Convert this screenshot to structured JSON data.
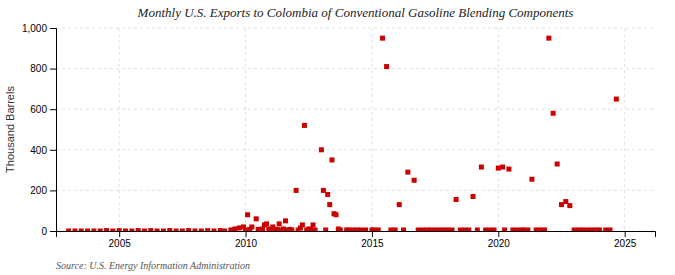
{
  "chart_data": {
    "type": "scatter",
    "title": "Monthly U.S. Exports to Colombia of Conventional Gasoline Blending Components",
    "ylabel": "Thousand Barrels",
    "source": "Source: U.S. Energy Information Administration",
    "color": "#cc0000",
    "marker": "square",
    "grid": true,
    "xlim": [
      2002.5,
      2026.2
    ],
    "xticks": [
      2005,
      2010,
      2015,
      2020,
      2025
    ],
    "ylim": [
      0,
      1000
    ],
    "yticks": [
      0,
      200,
      400,
      600,
      800,
      {
        "value": 1000,
        "label": "1,000"
      }
    ],
    "x": [
      2003.0,
      2003.25,
      2003.5,
      2003.75,
      2004.0,
      2004.25,
      2004.5,
      2004.75,
      2005.0,
      2005.25,
      2005.5,
      2005.75,
      2006.0,
      2006.25,
      2006.5,
      2006.75,
      2007.0,
      2007.25,
      2007.5,
      2007.75,
      2008.0,
      2008.25,
      2008.5,
      2008.75,
      2009.0,
      2009.17,
      2009.42,
      2009.58,
      2009.75,
      2009.92,
      2010.0,
      2010.08,
      2010.17,
      2010.25,
      2010.42,
      2010.5,
      2010.58,
      2010.67,
      2010.75,
      2010.83,
      2010.92,
      2011.0,
      2011.08,
      2011.17,
      2011.25,
      2011.33,
      2011.42,
      2011.5,
      2011.58,
      2011.67,
      2011.75,
      2011.83,
      2012.0,
      2012.08,
      2012.17,
      2012.25,
      2012.33,
      2012.42,
      2012.5,
      2012.58,
      2012.67,
      2012.75,
      2013.0,
      2013.08,
      2013.17,
      2013.25,
      2013.33,
      2013.42,
      2013.5,
      2013.58,
      2013.67,
      2013.75,
      2014.0,
      2014.08,
      2014.25,
      2014.42,
      2014.58,
      2014.75,
      2015.0,
      2015.08,
      2015.25,
      2015.42,
      2015.58,
      2015.75,
      2015.92,
      2016.08,
      2016.25,
      2016.42,
      2016.67,
      2016.83,
      2017.0,
      2017.17,
      2017.33,
      2017.5,
      2017.67,
      2017.83,
      2018.0,
      2018.17,
      2018.33,
      2018.5,
      2018.67,
      2018.83,
      2019.0,
      2019.17,
      2019.33,
      2019.5,
      2019.67,
      2019.83,
      2020.0,
      2020.17,
      2020.25,
      2020.42,
      2020.58,
      2020.75,
      2020.92,
      2021.0,
      2021.17,
      2021.33,
      2021.5,
      2021.67,
      2021.83,
      2022.0,
      2022.17,
      2022.33,
      2022.5,
      2022.67,
      2022.83,
      2023.0,
      2023.17,
      2023.33,
      2023.5,
      2023.67,
      2023.83,
      2024.0,
      2024.25,
      2024.42,
      2024.67
    ],
    "values": [
      0,
      0,
      0,
      0,
      0,
      0,
      2,
      0,
      2,
      0,
      0,
      2,
      0,
      2,
      0,
      0,
      2,
      0,
      0,
      2,
      0,
      0,
      2,
      0,
      2,
      0,
      5,
      10,
      15,
      20,
      5,
      80,
      8,
      20,
      60,
      8,
      5,
      10,
      30,
      35,
      10,
      5,
      20,
      5,
      8,
      35,
      5,
      10,
      50,
      5,
      8,
      5,
      200,
      5,
      15,
      30,
      520,
      5,
      10,
      8,
      30,
      5,
      400,
      200,
      5,
      180,
      130,
      350,
      85,
      80,
      10,
      5,
      5,
      5,
      5,
      5,
      5,
      5,
      5,
      5,
      5,
      950,
      810,
      5,
      5,
      130,
      5,
      290,
      250,
      5,
      5,
      5,
      5,
      5,
      5,
      5,
      5,
      5,
      155,
      5,
      5,
      5,
      170,
      5,
      315,
      5,
      5,
      5,
      310,
      315,
      5,
      305,
      5,
      5,
      5,
      5,
      5,
      255,
      5,
      5,
      5,
      950,
      580,
      330,
      130,
      145,
      125,
      5,
      5,
      5,
      5,
      5,
      5,
      5,
      5,
      5,
      650
    ]
  }
}
